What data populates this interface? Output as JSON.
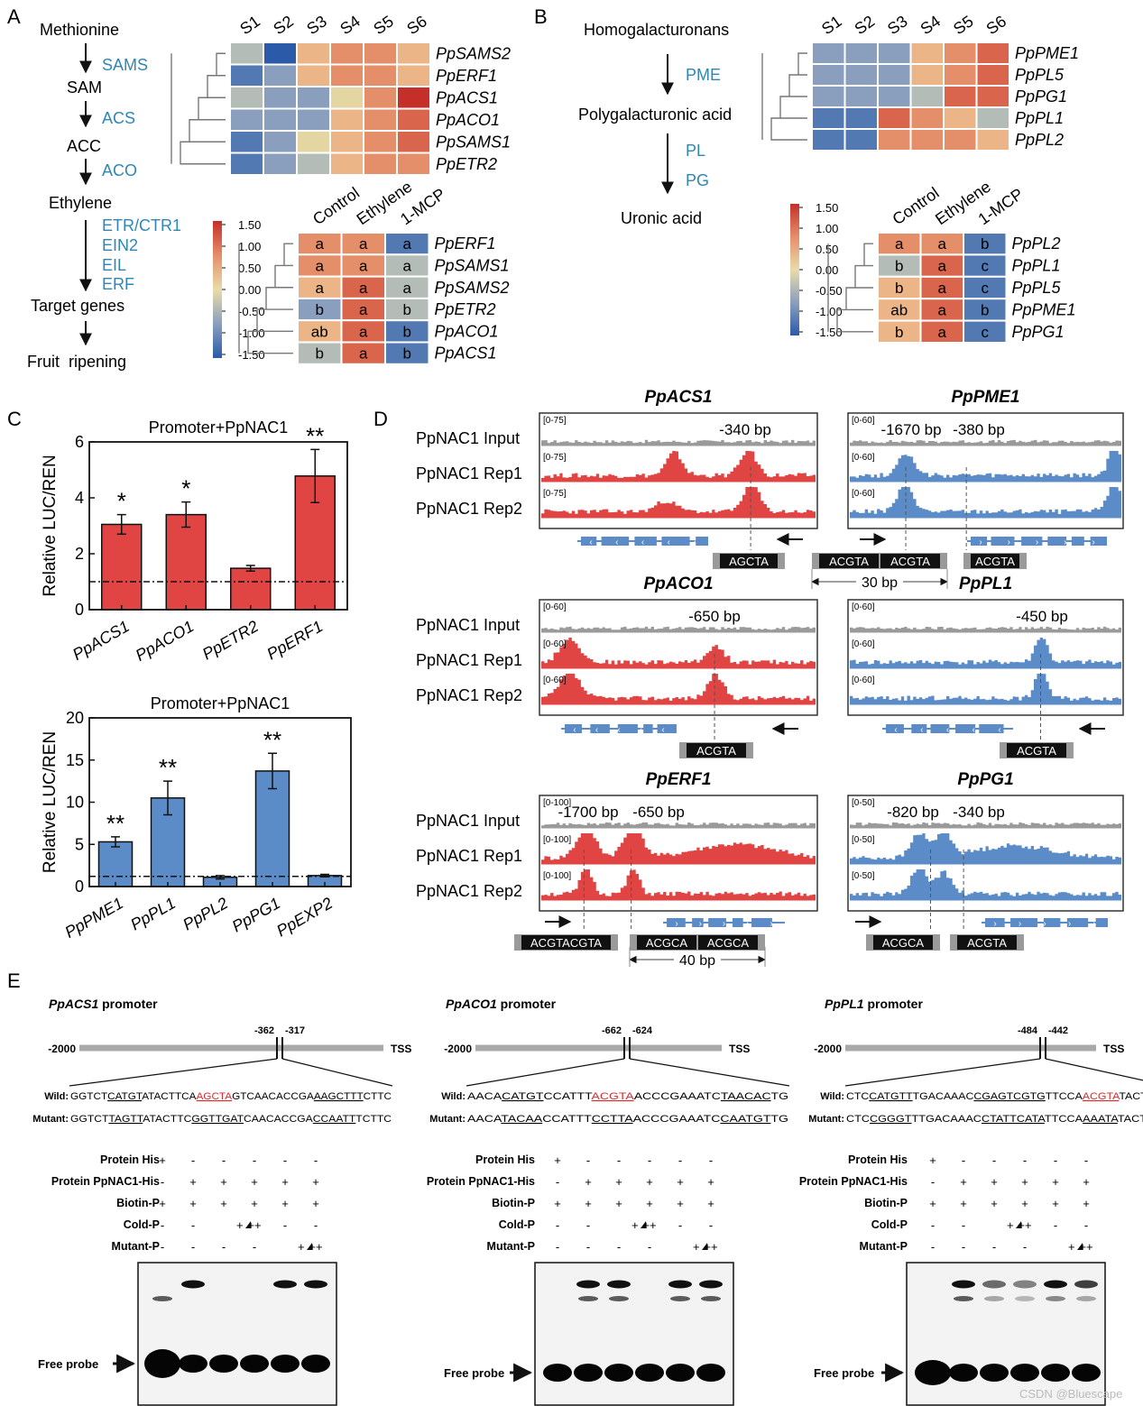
{
  "colors": {
    "red_bar": "#e04544",
    "blue_bar": "#5b8cc8",
    "pathway_enzyme": "#2f86b5",
    "track_input": "#9a9a9a",
    "track_red": "#e04544",
    "track_blue": "#5b8cc8",
    "motif_red": "#e0282b"
  },
  "heat_colors": [
    "#2b5aa8",
    "#5379b3",
    "#8a9fbd",
    "#b4bcb8",
    "#e3d6a2",
    "#ecb588",
    "#e58e6a",
    "#d9654d",
    "#c42f2a"
  ],
  "panelA": {
    "label": "A",
    "pathway": [
      {
        "metabolite": "Methionine",
        "enzymes": [
          "SAMS"
        ]
      },
      {
        "metabolite": "SAM",
        "enzymes": [
          "ACS"
        ]
      },
      {
        "metabolite": "ACC",
        "enzymes": [
          "ACO"
        ]
      },
      {
        "metabolite": "Ethylene",
        "enzymes": [
          "ETR/CTR1",
          "EIN2",
          "EIL",
          "ERF"
        ]
      },
      {
        "metabolite": "Target genes",
        "enzymes": []
      },
      {
        "metabolite": "Fruit  ripening",
        "enzymes": []
      }
    ],
    "heatmap1": {
      "cols": [
        "S1",
        "S2",
        "S3",
        "S4",
        "S5",
        "S6"
      ],
      "rows": [
        "PpSAMS2",
        "PpERF1",
        "PpACS1",
        "PpACO1",
        "PpSAMS1",
        "PpETR2"
      ],
      "values": [
        [
          -0.4,
          -1.4,
          0.2,
          0.9,
          0.7,
          0.4
        ],
        [
          -1.0,
          -0.8,
          0.5,
          0.8,
          0.6,
          0.5
        ],
        [
          -0.5,
          -0.6,
          -0.7,
          0.1,
          0.7,
          1.5
        ],
        [
          -0.8,
          -0.7,
          -0.6,
          0.4,
          0.8,
          1.1
        ],
        [
          -1.0,
          -0.9,
          -0.1,
          0.3,
          0.8,
          1.0
        ],
        [
          -1.0,
          -0.9,
          -0.2,
          0.4,
          0.7,
          0.8
        ]
      ]
    },
    "colorbar": {
      "ticks": [
        "1.50",
        "1.00",
        "0.50",
        "0.00",
        "-0.50",
        "-1.00",
        "-1.50"
      ]
    },
    "heatmap2": {
      "cols": [
        "Control",
        "Ethylene",
        "1-MCP"
      ],
      "rows": [
        "PpERF1",
        "PpSAMS1",
        "PpSAMS2",
        "PpETR2",
        "PpACO1",
        "PpACS1"
      ],
      "values": [
        [
          0.9,
          0.6,
          -1.2
        ],
        [
          0.7,
          0.9,
          -0.3
        ],
        [
          0.5,
          1.0,
          -0.2
        ],
        [
          -0.7,
          1.1,
          -0.5
        ],
        [
          0.2,
          1.2,
          -1.1
        ],
        [
          -0.3,
          1.3,
          -1.0
        ]
      ],
      "letters": [
        [
          "a",
          "a",
          "a"
        ],
        [
          "a",
          "a",
          "a"
        ],
        [
          "a",
          "a",
          "a"
        ],
        [
          "b",
          "a",
          "b"
        ],
        [
          "ab",
          "a",
          "b"
        ],
        [
          "b",
          "a",
          "b"
        ]
      ]
    }
  },
  "panelB": {
    "label": "B",
    "pathway": [
      {
        "metabolite": "Homogalacturonans",
        "enzymes": [
          "PME"
        ]
      },
      {
        "metabolite": "Polygalacturonic acid",
        "enzymes": [
          "PL",
          "PG"
        ]
      },
      {
        "metabolite": "Uronic acid",
        "enzymes": []
      }
    ],
    "heatmap1": {
      "cols": [
        "S1",
        "S2",
        "S3",
        "S4",
        "S5",
        "S6"
      ],
      "rows": [
        "PpPME1",
        "PpPL5",
        "PpPG1",
        "PpPL1",
        "PpPL2"
      ],
      "values": [
        [
          -0.9,
          -0.9,
          -0.8,
          0.4,
          0.9,
          1.2
        ],
        [
          -0.9,
          -0.9,
          -0.8,
          0.2,
          0.8,
          1.2
        ],
        [
          -0.8,
          -0.8,
          -0.7,
          -0.2,
          1.1,
          1.2
        ],
        [
          -1.3,
          -1.3,
          1.2,
          0.8,
          0.3,
          -0.2
        ],
        [
          -1.3,
          -1.2,
          0.8,
          0.7,
          0.6,
          0.4
        ]
      ]
    },
    "colorbar": {
      "ticks": [
        "1.50",
        "1.00",
        "0.50",
        "0.00",
        "-0.50",
        "-1.00",
        "-1.50"
      ]
    },
    "heatmap2": {
      "cols": [
        "Control",
        "Ethylene",
        "1-MCP"
      ],
      "rows": [
        "PpPL2",
        "PpPL1",
        "PpPL5",
        "PpPME1",
        "PpPG1"
      ],
      "values": [
        [
          0.6,
          0.6,
          -1.3
        ],
        [
          -0.5,
          1.1,
          -1.0
        ],
        [
          0.2,
          1.2,
          -1.0
        ],
        [
          0.3,
          1.1,
          -1.0
        ],
        [
          0.3,
          1.1,
          -1.0
        ]
      ],
      "letters": [
        [
          "a",
          "a",
          "b"
        ],
        [
          "b",
          "a",
          "c"
        ],
        [
          "b",
          "a",
          "c"
        ],
        [
          "ab",
          "a",
          "b"
        ],
        [
          "b",
          "a",
          "c"
        ]
      ]
    }
  },
  "panelC": {
    "label": "C",
    "chart_data": [
      {
        "type": "bar",
        "title": "Promoter+PpNAC1",
        "ylabel": "Relative LUC/REN",
        "categories": [
          "PpACS1",
          "PpACO1",
          "PpETR2",
          "PpERF1"
        ],
        "values": [
          3.05,
          3.4,
          1.48,
          4.78
        ],
        "errors": [
          0.35,
          0.45,
          0.1,
          0.95
        ],
        "significance": [
          "*",
          "*",
          "",
          "**"
        ],
        "ylim": [
          0,
          6
        ],
        "yticks": [
          "0",
          "2",
          "4",
          "6"
        ],
        "baseline": 1
      },
      {
        "type": "bar",
        "title": "Promoter+PpNAC1",
        "ylabel": "Relative LUC/REN",
        "categories": [
          "PpPME1",
          "PpPL1",
          "PpPL2",
          "PpPG1",
          "PpEXP2"
        ],
        "values": [
          5.3,
          10.5,
          1.1,
          13.7,
          1.3
        ],
        "errors": [
          0.6,
          2.0,
          0.2,
          2.1,
          0.15
        ],
        "significance": [
          "**",
          "**",
          "",
          "**",
          ""
        ],
        "ylim": [
          0,
          20
        ],
        "yticks": [
          "0",
          "5",
          "10",
          "15",
          "20"
        ],
        "baseline": 1.2
      }
    ]
  },
  "panelD": {
    "label": "D",
    "track_labels": [
      "PpNAC1 Input",
      "PpNAC1 Rep1",
      "PpNAC1 Rep2"
    ],
    "loci": [
      {
        "gene": "PpACS1",
        "ranges": [
          "[0-75]",
          "[0-75]",
          "[0-75]"
        ],
        "peak_labels": [
          "-340 bp"
        ],
        "motifs": [
          "AGCTA"
        ],
        "spacing": ""
      },
      {
        "gene": "PpPME1",
        "ranges": [
          "[0-60]",
          "[0-60]",
          "[0-60]"
        ],
        "peak_labels": [
          "-1670 bp",
          "-380 bp"
        ],
        "motifs": [
          "ACGTA",
          "ACGTA",
          "ACGTA"
        ],
        "spacing": "30 bp"
      },
      {
        "gene": "PpACO1",
        "ranges": [
          "[0-60]",
          "[0-60]",
          "[0-60]"
        ],
        "peak_labels": [
          "-650 bp"
        ],
        "motifs": [
          "ACGTA"
        ],
        "spacing": ""
      },
      {
        "gene": "PpPL1",
        "ranges": [
          "[0-60]",
          "[0-60]",
          "[0-60]"
        ],
        "peak_labels": [
          "-450 bp"
        ],
        "motifs": [
          "ACGTA"
        ],
        "spacing": ""
      },
      {
        "gene": "PpERF1",
        "ranges": [
          "[0-100]",
          "[0-100]",
          "[0-100]"
        ],
        "peak_labels": [
          "-1700 bp",
          "-650 bp"
        ],
        "motifs": [
          "ACGTACGTA",
          "ACGCA",
          "ACGCA"
        ],
        "spacing": "40 bp"
      },
      {
        "gene": "PpPG1",
        "ranges": [
          "[0-50]",
          "[0-50]",
          "[0-50]"
        ],
        "peak_labels": [
          "-820 bp",
          "-340 bp"
        ],
        "motifs": [
          "ACGCA",
          "ACGTA"
        ],
        "spacing": ""
      }
    ]
  },
  "panelE": {
    "label": "E",
    "tss": "TSS",
    "start": "-2000",
    "row_labels": [
      "Protein His",
      "Protein PpNAC1-His",
      "Biotin-P",
      "Cold-P",
      "Mutant-P"
    ],
    "row_values": [
      [
        "+",
        "-",
        "-",
        "-",
        "-",
        "-"
      ],
      [
        "-",
        "+",
        "+",
        "+",
        "+",
        "+"
      ],
      [
        "+",
        "+",
        "+",
        "+",
        "+",
        "+"
      ],
      [
        "-",
        "-",
        "+",
        "++",
        "-",
        "-"
      ],
      [
        "-",
        "-",
        "-",
        "-",
        "+",
        "++"
      ]
    ],
    "free_probe": "Free probe",
    "promoters": [
      {
        "gene": "PpACS1",
        "suffix": " promoter",
        "site_start": "-362",
        "site_end": "-317",
        "wild_label": "Wild:",
        "mutant_label": "Mutant:",
        "wild": [
          {
            "t": "GGTCT",
            "u": false,
            "r": false
          },
          {
            "t": "CATGT",
            "u": true,
            "r": false
          },
          {
            "t": "ATACTTCA",
            "u": false,
            "r": false
          },
          {
            "t": "AGCTA",
            "u": true,
            "r": true
          },
          {
            "t": "GTCAACACCGA",
            "u": false,
            "r": false
          },
          {
            "t": "AAGCTTT",
            "u": true,
            "r": false
          },
          {
            "t": "CTTC",
            "u": false,
            "r": false
          }
        ],
        "mutant": [
          {
            "t": "GGTCT",
            "u": false,
            "r": false
          },
          {
            "t": "TAGTT",
            "u": true,
            "r": false
          },
          {
            "t": "ATACTTC",
            "u": false,
            "r": false
          },
          {
            "t": "GGTTGAT",
            "u": true,
            "r": false
          },
          {
            "t": "CAACACCGA",
            "u": false,
            "r": false
          },
          {
            "t": "CCAATT",
            "u": true,
            "r": false
          },
          {
            "t": "TCTTC",
            "u": false,
            "r": false
          }
        ]
      },
      {
        "gene": "PpACO1",
        "suffix": " promoter",
        "site_start": "-662",
        "site_end": "-624",
        "wild_label": "Wild:",
        "mutant_label": "Mutant:",
        "wild": [
          {
            "t": "AACA",
            "u": false,
            "r": false
          },
          {
            "t": "CATGT",
            "u": true,
            "r": false
          },
          {
            "t": "CCATTT",
            "u": false,
            "r": false
          },
          {
            "t": "ACGTA",
            "u": true,
            "r": true
          },
          {
            "t": "ACCCGAAATC",
            "u": false,
            "r": false
          },
          {
            "t": "TAACAC",
            "u": true,
            "r": false
          },
          {
            "t": "TG",
            "u": false,
            "r": false
          }
        ],
        "mutant": [
          {
            "t": "AACA",
            "u": false,
            "r": false
          },
          {
            "t": "TACAA",
            "u": true,
            "r": false
          },
          {
            "t": "CCATTT",
            "u": false,
            "r": false
          },
          {
            "t": "CCTTA",
            "u": true,
            "r": false
          },
          {
            "t": "ACCCGAAATC",
            "u": false,
            "r": false
          },
          {
            "t": "CAATGT",
            "u": true,
            "r": false
          },
          {
            "t": "TG",
            "u": false,
            "r": false
          }
        ]
      },
      {
        "gene": "PpPL1",
        "suffix": " promoter",
        "site_start": "-484",
        "site_end": "-442",
        "wild_label": "Wild:",
        "mutant_label": "Mutant:",
        "wild": [
          {
            "t": "CTC",
            "u": false,
            "r": false
          },
          {
            "t": "CATGTT",
            "u": true,
            "r": false
          },
          {
            "t": "TGACAAAC",
            "u": false,
            "r": false
          },
          {
            "t": "CGAGTCGTG",
            "u": true,
            "r": false
          },
          {
            "t": "TTCCA",
            "u": false,
            "r": false
          },
          {
            "t": "ACGTA",
            "u": true,
            "r": true
          },
          {
            "t": "TACTTTA",
            "u": false,
            "r": false
          }
        ],
        "mutant": [
          {
            "t": "CTC",
            "u": false,
            "r": false
          },
          {
            "t": "CGGGT",
            "u": true,
            "r": false
          },
          {
            "t": "TTGACAAAC",
            "u": false,
            "r": false
          },
          {
            "t": "CTATTCATA",
            "u": true,
            "r": false
          },
          {
            "t": "TTCCA",
            "u": false,
            "r": false
          },
          {
            "t": "AAATA",
            "u": true,
            "r": false
          },
          {
            "t": "TACTTTA",
            "u": false,
            "r": false
          }
        ]
      }
    ]
  },
  "watermark": "CSDN @Bluescape"
}
